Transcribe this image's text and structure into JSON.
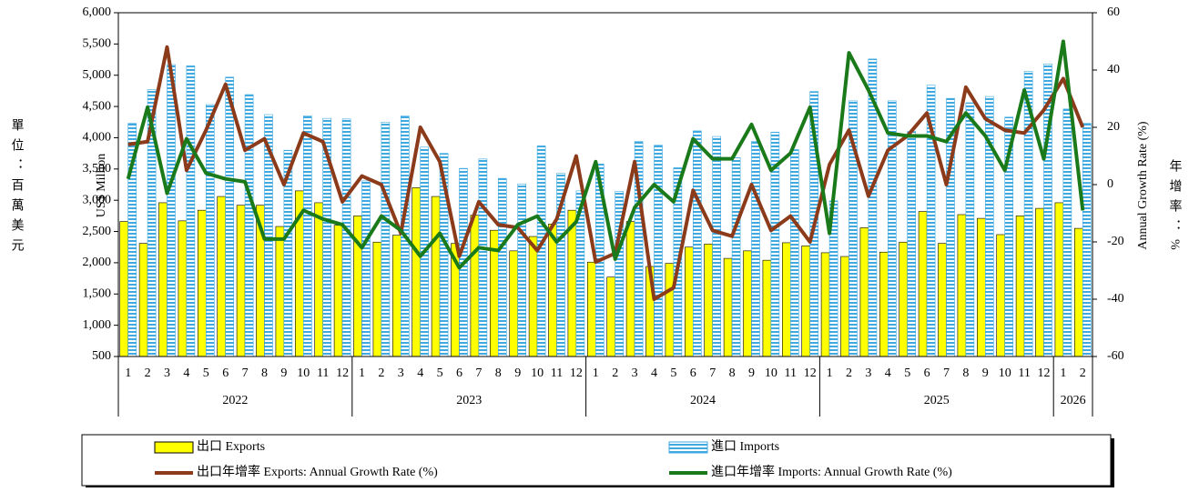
{
  "chart_data": {
    "type": "bar-line",
    "y_label": "US$ Million",
    "y_unit_label": "單位：百萬美元",
    "y2_label": "Annual Growth Rate (%)",
    "y2_unit_label": "年增率：%",
    "categories": [
      "1",
      "2",
      "3",
      "4",
      "5",
      "6",
      "7",
      "8",
      "9",
      "10",
      "11",
      "12",
      "1",
      "2",
      "3",
      "4",
      "5",
      "6",
      "7",
      "8",
      "9",
      "10",
      "11",
      "12",
      "1",
      "2",
      "3",
      "4",
      "5",
      "6",
      "7",
      "8",
      "9",
      "10",
      "11",
      "12",
      "1",
      "2",
      "3",
      "4",
      "5",
      "6",
      "7",
      "8",
      "9",
      "10",
      "11",
      "12",
      "1",
      "2"
    ],
    "category_groups": [
      "2022",
      "2022",
      "2022",
      "2022",
      "2022",
      "2022",
      "2022",
      "2022",
      "2022",
      "2022",
      "2022",
      "2022",
      "2023",
      "2023",
      "2023",
      "2023",
      "2023",
      "2023",
      "2023",
      "2023",
      "2023",
      "2023",
      "2023",
      "2023",
      "2024",
      "2024",
      "2024",
      "2024",
      "2024",
      "2024",
      "2024",
      "2024",
      "2024",
      "2024",
      "2024",
      "2024",
      "2025",
      "2025",
      "2025",
      "2025",
      "2025",
      "2025",
      "2025",
      "2025",
      "2025",
      "2025",
      "2025",
      "2025",
      "2026",
      "2026"
    ],
    "series": [
      {
        "name": "出口 Exports",
        "kind": "bar",
        "color": "#ffff00",
        "values": [
          2660,
          2310,
          2960,
          2670,
          2840,
          3060,
          2920,
          2920,
          2580,
          3150,
          2960,
          2600,
          2750,
          2330,
          2440,
          3200,
          3060,
          2310,
          2760,
          2520,
          2190,
          2420,
          2620,
          2840,
          2010,
          1770,
          2660,
          1940,
          1990,
          2250,
          2300,
          2070,
          2190,
          2040,
          2320,
          2270,
          2160,
          2100,
          2560,
          2170,
          2330,
          2820,
          2310,
          2770,
          2710,
          2450,
          2750,
          2870,
          2960,
          2550
        ]
      },
      {
        "name": "進口 Imports",
        "kind": "bar",
        "color": "#3fa9e0",
        "values": [
          4230,
          4770,
          5170,
          5150,
          4530,
          4970,
          4690,
          4370,
          3800,
          4350,
          4310,
          4300,
          3310,
          4250,
          4350,
          3850,
          3750,
          3510,
          3660,
          3350,
          3260,
          3870,
          3430,
          3150,
          3580,
          3140,
          3940,
          3880,
          3520,
          4110,
          4020,
          3680,
          3940,
          4090,
          3810,
          4740,
          2990,
          4590,
          5260,
          4590,
          4100,
          4840,
          4630,
          4560,
          4660,
          4330,
          5060,
          5180,
          4460,
          4230
        ]
      },
      {
        "name": "出口年增率 Exports: Annual Growth Rate (%)",
        "kind": "line",
        "axis": "y2",
        "color": "#8b3a1a",
        "values": [
          14,
          15,
          48,
          5,
          19,
          35,
          12,
          16,
          0,
          18,
          15,
          -6,
          3,
          0,
          -17,
          20,
          8,
          -25,
          -6,
          -14,
          -15,
          -23,
          -12,
          10,
          -27,
          -24,
          8,
          -40,
          -36,
          -2,
          -16,
          -18,
          0,
          -16,
          -11,
          -20,
          7,
          19,
          -4,
          12,
          17,
          25,
          0,
          34,
          23,
          19,
          18,
          26,
          37,
          20
        ]
      },
      {
        "name": "進口年增率 Imports: Annual Growth Rate (%)",
        "kind": "line",
        "axis": "y2",
        "color": "#1a7a1a",
        "values": [
          2,
          27,
          -3,
          16,
          4,
          2,
          1,
          -19,
          -19,
          -9,
          -12,
          -14,
          -22,
          -11,
          -16,
          -25,
          -17,
          -29,
          -22,
          -23,
          -14,
          -11,
          -20,
          -13,
          8,
          -26,
          -8,
          0,
          -6,
          16,
          9,
          9,
          21,
          5,
          11,
          27,
          -17,
          46,
          33,
          18,
          17,
          17,
          15,
          25,
          17,
          5,
          33,
          9,
          50,
          -9
        ]
      }
    ],
    "ylim": [
      500,
      6000
    ],
    "yticks": [
      500,
      {
        "value": 1000,
        "label": "1,000"
      },
      {
        "value": 1500,
        "label": "1,500"
      },
      {
        "value": 2000,
        "label": "2,000"
      },
      {
        "value": 2500,
        "label": "2,500"
      },
      {
        "value": 3000,
        "label": "3,000"
      },
      {
        "value": 3500,
        "label": "3,500"
      },
      {
        "value": 4000,
        "label": "4,000"
      },
      {
        "value": 4500,
        "label": "4,500"
      },
      {
        "value": 5000,
        "label": "5,000"
      },
      {
        "value": 5500,
        "label": "5,500"
      },
      {
        "value": 6000,
        "label": "6,000"
      }
    ],
    "y2lim": [
      -60,
      60
    ],
    "y2ticks": [
      -60,
      -40,
      -20,
      0,
      20,
      40,
      60
    ],
    "legend": "bottom"
  }
}
